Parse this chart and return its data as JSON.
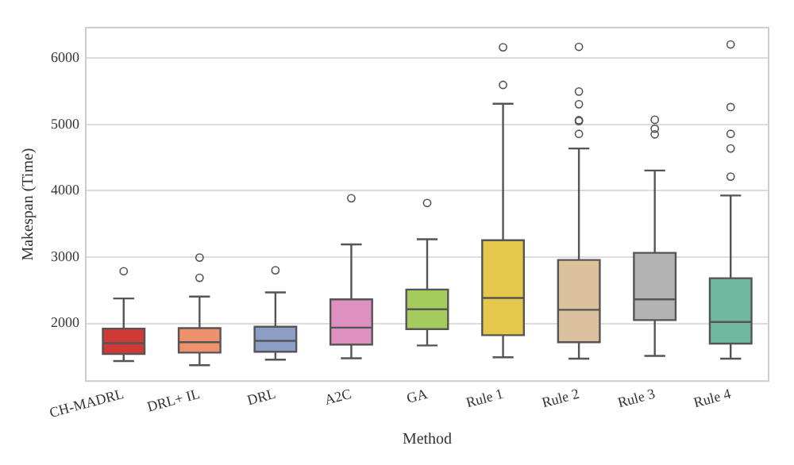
{
  "chart_data": {
    "type": "box",
    "xlabel": "Method",
    "ylabel": "Makespan (Time)",
    "categories": [
      "CH-MADRL",
      "DRL+ IL",
      "DRL",
      "A2C",
      "GA",
      "Rule 1",
      "Rule 2",
      "Rule 3",
      "Rule 4"
    ],
    "colors": [
      "#cf3a36",
      "#ee916d",
      "#8d9ec6",
      "#de91c1",
      "#a4cc5c",
      "#e5c74b",
      "#dbc29c",
      "#b3b3b3",
      "#70b7a0"
    ],
    "boxes": [
      {
        "low": 1433,
        "q1": 1539,
        "median": 1702,
        "q3": 1922,
        "high": 2376,
        "outliers": [
          2787
        ]
      },
      {
        "low": 1369,
        "q1": 1560,
        "median": 1716,
        "q3": 1929,
        "high": 2404,
        "outliers": [
          2688,
          2993
        ]
      },
      {
        "low": 1454,
        "q1": 1574,
        "median": 1738,
        "q3": 1950,
        "high": 2468,
        "outliers": [
          2801
        ]
      },
      {
        "low": 1475,
        "q1": 1681,
        "median": 1936,
        "q3": 2362,
        "high": 3191,
        "outliers": [
          3887
        ]
      },
      {
        "low": 1667,
        "q1": 1915,
        "median": 2213,
        "q3": 2511,
        "high": 3270,
        "outliers": [
          3816
        ]
      },
      {
        "low": 1489,
        "q1": 1823,
        "median": 2383,
        "q3": 3255,
        "high": 5312,
        "outliers": [
          5596,
          6163
        ]
      },
      {
        "low": 1468,
        "q1": 1716,
        "median": 2206,
        "q3": 2957,
        "high": 4638,
        "outliers": [
          4858,
          5050,
          5064,
          5305,
          5496,
          6170
        ]
      },
      {
        "low": 1511,
        "q1": 2050,
        "median": 2362,
        "q3": 3064,
        "high": 4305,
        "outliers": [
          4851,
          4936,
          5071
        ]
      },
      {
        "low": 1468,
        "q1": 1695,
        "median": 2021,
        "q3": 2681,
        "high": 3929,
        "outliers": [
          4213,
          4638,
          4858,
          5262,
          6206
        ]
      }
    ],
    "ylim": [
      1130,
      6460
    ],
    "yticks": [
      2000,
      3000,
      4000,
      5000,
      6000
    ],
    "grid": "y"
  }
}
